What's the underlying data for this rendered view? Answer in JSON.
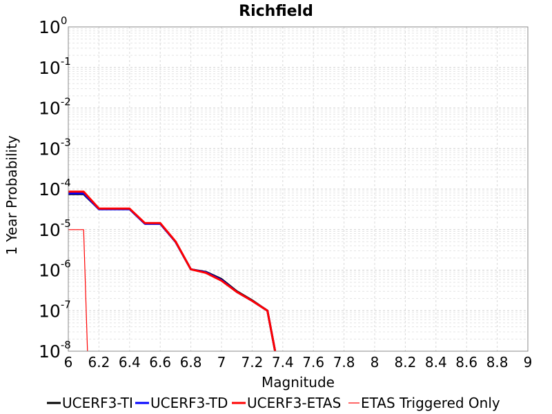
{
  "chart_data": {
    "type": "line",
    "title": "Richfield",
    "xlabel": "Magnitude",
    "ylabel": "1 Year Probability",
    "xlim": [
      6,
      9
    ],
    "ylim_log10": [
      -8,
      0
    ],
    "yscale": "log",
    "x_ticks": [
      "6",
      "6.2",
      "6.4",
      "6.6",
      "6.8",
      "7",
      "7.2",
      "7.4",
      "7.6",
      "7.8",
      "8",
      "8.2",
      "8.4",
      "8.6",
      "8.8",
      "9"
    ],
    "y_ticks": [
      {
        "base": "10",
        "exp": "0"
      },
      {
        "base": "10",
        "exp": "-1"
      },
      {
        "base": "10",
        "exp": "-2"
      },
      {
        "base": "10",
        "exp": "-3"
      },
      {
        "base": "10",
        "exp": "-4"
      },
      {
        "base": "10",
        "exp": "-5"
      },
      {
        "base": "10",
        "exp": "-6"
      },
      {
        "base": "10",
        "exp": "-7"
      },
      {
        "base": "10",
        "exp": "-8"
      }
    ],
    "grid": true,
    "legend_position": "bottom",
    "series": [
      {
        "name": "UCERF3-TI",
        "color": "#000000",
        "style": "thick",
        "points": [
          [
            6.0,
            7.5e-05
          ],
          [
            6.1,
            7.5e-05
          ],
          [
            6.2,
            3.2e-05
          ],
          [
            6.4,
            3.2e-05
          ],
          [
            6.5,
            1.4e-05
          ],
          [
            6.6,
            1.4e-05
          ],
          [
            6.7,
            5e-06
          ],
          [
            6.8,
            1.05e-06
          ],
          [
            6.9,
            9e-07
          ],
          [
            7.0,
            6e-07
          ],
          [
            7.1,
            3e-07
          ],
          [
            7.2,
            1.8e-07
          ],
          [
            7.3,
            1e-07
          ],
          [
            7.35,
            1e-08
          ]
        ]
      },
      {
        "name": "UCERF3-TD",
        "color": "#0000ff",
        "style": "thick",
        "points": [
          [
            6.0,
            7.8e-05
          ],
          [
            6.1,
            7.8e-05
          ],
          [
            6.2,
            3.2e-05
          ],
          [
            6.4,
            3.2e-05
          ],
          [
            6.5,
            1.4e-05
          ],
          [
            6.6,
            1.4e-05
          ],
          [
            6.7,
            5e-06
          ],
          [
            6.8,
            1.05e-06
          ],
          [
            6.9,
            8.8e-07
          ],
          [
            7.0,
            5.7e-07
          ],
          [
            7.1,
            2.9e-07
          ],
          [
            7.2,
            1.75e-07
          ],
          [
            7.3,
            1e-07
          ],
          [
            7.35,
            1e-08
          ]
        ]
      },
      {
        "name": "UCERF3-ETAS",
        "color": "#ff0000",
        "style": "thick",
        "points": [
          [
            6.0,
            8.6e-05
          ],
          [
            6.1,
            8.6e-05
          ],
          [
            6.2,
            3.3e-05
          ],
          [
            6.4,
            3.3e-05
          ],
          [
            6.5,
            1.45e-05
          ],
          [
            6.6,
            1.45e-05
          ],
          [
            6.7,
            5.1e-06
          ],
          [
            6.8,
            1.05e-06
          ],
          [
            6.9,
            8.5e-07
          ],
          [
            7.0,
            5.5e-07
          ],
          [
            7.1,
            2.9e-07
          ],
          [
            7.2,
            1.75e-07
          ],
          [
            7.3,
            1e-07
          ],
          [
            7.35,
            1e-08
          ]
        ]
      },
      {
        "name": "ETAS Triggered Only",
        "color": "#ff0000",
        "style": "thin",
        "points": [
          [
            6.0,
            1e-05
          ],
          [
            6.1,
            1e-05
          ],
          [
            6.125,
            1e-08
          ]
        ]
      }
    ]
  }
}
